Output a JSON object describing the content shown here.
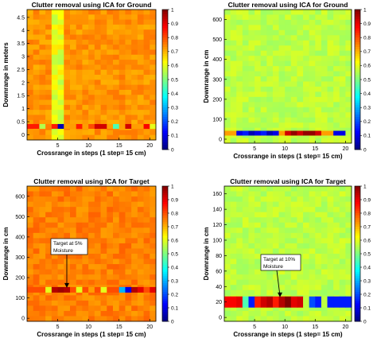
{
  "chart_data": [
    {
      "type": "heatmap",
      "title": "Clutter removal using  ICA for  Ground",
      "xlabel": "Crossrange in steps (1 step= 15 cm)",
      "ylabel": "Downrange in meters",
      "xlim": [
        0,
        21
      ],
      "ylim": [
        -0.2,
        4.8
      ],
      "xticks": [
        "5",
        "10",
        "15",
        "20"
      ],
      "yticks": [
        "0",
        "0.5",
        "1",
        "1.5",
        "2",
        "2.5",
        "3",
        "3.5",
        "4",
        "4.5"
      ],
      "colorbar": {
        "range": [
          0,
          1
        ],
        "ticks": [
          "0",
          "0.1",
          "0.2",
          "0.3",
          "0.4",
          "0.5",
          "0.6",
          "0.7",
          "0.8",
          "0.9",
          "1"
        ]
      },
      "background_level": 0.73,
      "column_level": {
        "x": 5,
        "value": 0.6
      },
      "band": {
        "y": 0.32,
        "values": [
          0.85,
          0.85,
          0.55,
          0.75,
          0.85,
          0.05,
          0.72,
          0.72,
          0.85,
          0.72,
          0.8,
          0.92,
          0.92,
          0.72,
          0.45,
          0.72,
          0.92,
          0.72,
          0.72,
          0.88,
          0.6
        ]
      }
    },
    {
      "type": "heatmap",
      "title": "Clutter removal using  ICA for  Ground",
      "xlabel": "Crossrange in steps (1 step= 15 cm)",
      "ylabel": "Downrange in cm",
      "xlim": [
        0,
        21
      ],
      "ylim": [
        -20,
        650
      ],
      "xticks": [
        "5",
        "10",
        "15",
        "20"
      ],
      "yticks": [
        "0",
        "100",
        "200",
        "300",
        "400",
        "500",
        "600"
      ],
      "colorbar": {
        "range": [
          0,
          1
        ],
        "ticks": [
          "0",
          "0.1",
          "0.2",
          "0.3",
          "0.4",
          "0.5",
          "0.6",
          "0.7",
          "0.8",
          "0.9",
          "1"
        ]
      },
      "background_level": 0.56,
      "band": {
        "y": 30,
        "values": [
          0.72,
          0.72,
          0.1,
          0.15,
          0.05,
          0.1,
          0.15,
          0.05,
          0.1,
          0.72,
          0.92,
          0.98,
          0.92,
          0.98,
          0.98,
          0.92,
          0.72,
          0.72,
          0.1,
          0.1,
          0.56
        ]
      }
    },
    {
      "type": "heatmap",
      "title": "Clutter removal using  ICA for  Target",
      "xlabel": "Crossrange in steps (1 step= 15 cm)",
      "ylabel": "Downrange in cm",
      "xlim": [
        0,
        21
      ],
      "ylim": [
        -15,
        650
      ],
      "xticks": [
        "5",
        "10",
        "15",
        "20"
      ],
      "yticks": [
        "0",
        "100",
        "200",
        "300",
        "400",
        "500",
        "600"
      ],
      "colorbar": {
        "range": [
          0,
          1
        ],
        "ticks": [
          "0",
          "0.1",
          "0.2",
          "0.3",
          "0.4",
          "0.5",
          "0.6",
          "0.7",
          "0.8",
          "0.9",
          "1"
        ]
      },
      "background_level": 0.75,
      "band": {
        "y": 140,
        "values": [
          0.8,
          0.8,
          0.8,
          0.6,
          0.95,
          0.97,
          0.95,
          0.8,
          0.6,
          0.8,
          0.72,
          0.8,
          0.6,
          0.8,
          0.8,
          0.3,
          0.1,
          0.95,
          0.9,
          0.8,
          0.9
        ]
      },
      "annotation": "Target at 5% Moisture"
    },
    {
      "type": "heatmap",
      "title": "Clutter removal using  ICA for  Target",
      "xlabel": "Crossrange in steps (1 step= 15 cm)",
      "ylabel": "Downrange in cm",
      "xlim": [
        0,
        21
      ],
      "ylim": [
        -5,
        170
      ],
      "xticks": [
        "5",
        "10",
        "15",
        "20"
      ],
      "yticks": [
        "0",
        "20",
        "40",
        "60",
        "80",
        "100",
        "120",
        "140",
        "160"
      ],
      "colorbar": {
        "range": [
          0,
          1
        ],
        "ticks": [
          "0",
          "0.1",
          "0.2",
          "0.3",
          "0.4",
          "0.5",
          "0.6",
          "0.7",
          "0.8",
          "0.9",
          "1"
        ]
      },
      "background_level": 0.56,
      "band": {
        "y": 20,
        "values": [
          0.88,
          0.88,
          0.9,
          0.45,
          0.15,
          0.85,
          0.92,
          0.95,
          0.85,
          0.95,
          1.0,
          0.9,
          0.92,
          0.56,
          0.2,
          0.15,
          0.56,
          0.15,
          0.15,
          0.15,
          0.15
        ]
      },
      "annotation": "Target at 10% Moisture"
    }
  ]
}
